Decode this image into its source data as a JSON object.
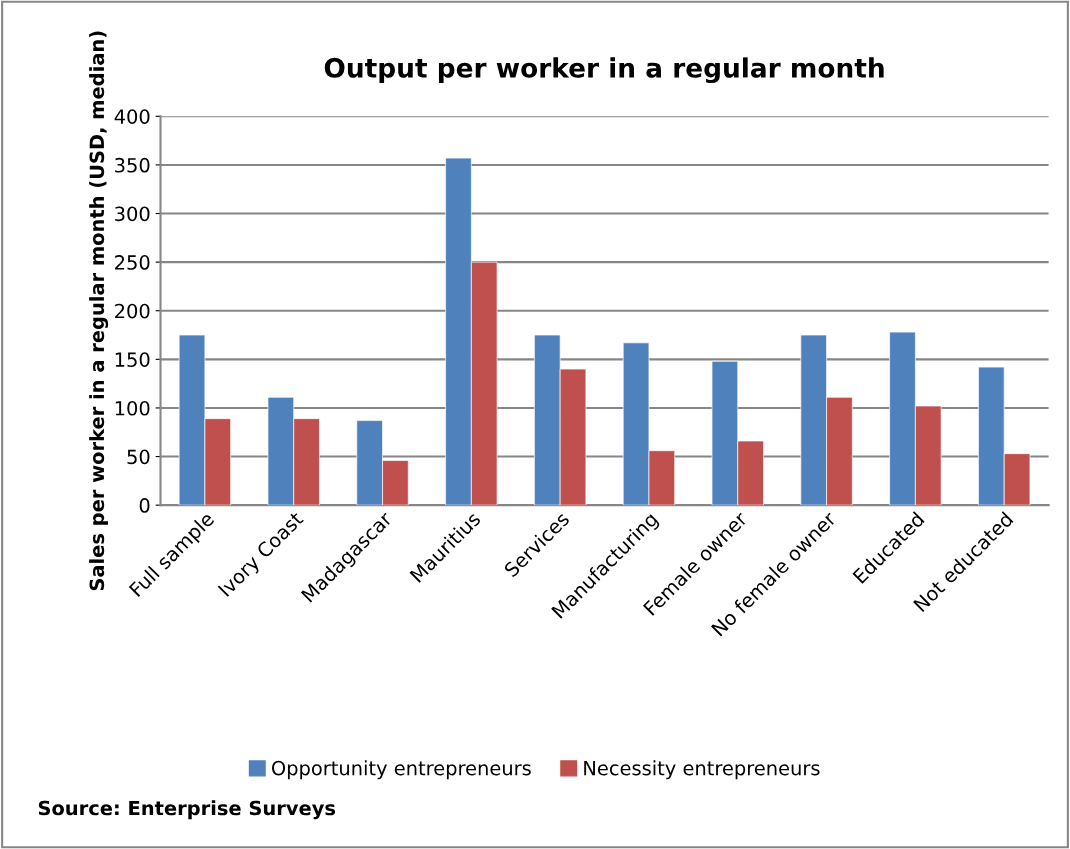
{
  "chart_data": {
    "type": "bar",
    "title": "Output per worker in a regular month",
    "ylabel": "Sales per worker in a regular month (USD, median)",
    "categories": [
      "Full sample",
      "Ivory Coast",
      "Madagascar",
      "Mauritius",
      "Services",
      "Manufacturing",
      "Female owner",
      "No female owner",
      "Educated",
      "Not educated"
    ],
    "series": [
      {
        "name": "Opportunity entrepreneurs",
        "color": "#4f81bd",
        "values": [
          175,
          111,
          87,
          357,
          175,
          167,
          148,
          175,
          178,
          142
        ]
      },
      {
        "name": "Necessity entrepreneurs",
        "color": "#c0504d",
        "values": [
          89,
          89,
          46,
          250,
          140,
          56,
          66,
          111,
          102,
          53
        ]
      }
    ],
    "ylim": [
      0,
      400
    ],
    "yticks": [
      0,
      50,
      100,
      150,
      200,
      250,
      300,
      350,
      400
    ],
    "grid": "y",
    "legend": "bottom",
    "annotations": [
      "Source: Enterprise Surveys"
    ]
  }
}
